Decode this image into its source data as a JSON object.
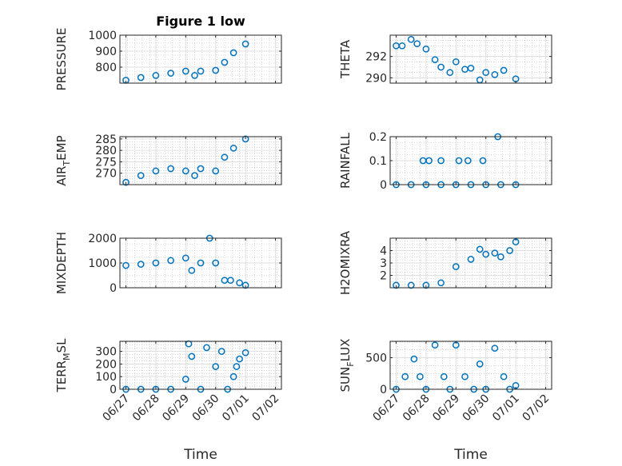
{
  "chart_data": [
    {
      "type": "scatter",
      "title": "Figure 1 low",
      "ylabel": "PRESSURE",
      "sub": "",
      "ylim": [
        700,
        1000
      ],
      "yticks": [
        800,
        900,
        1000
      ],
      "yticklabels": [
        "800",
        "900",
        "1000"
      ],
      "x": [
        0.0,
        0.5,
        1.0,
        1.5,
        2.0,
        2.3,
        2.5,
        3.0,
        3.3,
        3.6,
        4.0
      ],
      "y": [
        718,
        735,
        748,
        762,
        775,
        748,
        775,
        780,
        830,
        890,
        945
      ]
    },
    {
      "type": "scatter",
      "title": "",
      "ylabel": "THETA",
      "sub": "",
      "ylim": [
        289.5,
        294
      ],
      "yticks": [
        290,
        292
      ],
      "yticklabels": [
        "290",
        "292"
      ],
      "x": [
        0.0,
        0.2,
        0.5,
        0.7,
        1.0,
        1.3,
        1.5,
        1.8,
        2.0,
        2.3,
        2.5,
        2.8,
        3.0,
        3.3,
        3.6,
        4.0
      ],
      "y": [
        293.0,
        293.0,
        293.6,
        293.2,
        292.7,
        291.7,
        291.0,
        290.5,
        291.5,
        290.8,
        290.9,
        289.8,
        290.5,
        290.3,
        290.7,
        289.9
      ]
    },
    {
      "type": "scatter",
      "title": "",
      "ylabel": "AIR",
      "sub": "T",
      "ylabel_tail": "EMP",
      "ylim": [
        265,
        286
      ],
      "yticks": [
        270,
        275,
        280,
        285
      ],
      "yticklabels": [
        "270",
        "275",
        "280",
        "285"
      ],
      "x": [
        0.0,
        0.5,
        1.0,
        1.5,
        2.0,
        2.3,
        2.5,
        3.0,
        3.3,
        3.6,
        4.0
      ],
      "y": [
        266,
        269,
        271,
        272,
        271,
        269,
        272,
        271,
        277,
        281,
        285
      ]
    },
    {
      "type": "scatter",
      "title": "",
      "ylabel": "RAINFALL",
      "sub": "",
      "ylim": [
        0,
        0.2
      ],
      "yticks": [
        0,
        0.1,
        0.2
      ],
      "yticklabels": [
        "0",
        "0.1",
        "0.2"
      ],
      "x": [
        0.0,
        0.5,
        1.0,
        1.5,
        2.0,
        2.5,
        3.0,
        3.5,
        4.0,
        0.9,
        1.1,
        1.5,
        2.1,
        2.4,
        2.9,
        3.4
      ],
      "y": [
        0,
        0,
        0,
        0,
        0,
        0,
        0,
        0,
        0,
        0.1,
        0.1,
        0.1,
        0.1,
        0.1,
        0.1,
        0.2
      ]
    },
    {
      "type": "scatter",
      "title": "",
      "ylabel": "MIXDEPTH",
      "sub": "",
      "ylim": [
        0,
        2000
      ],
      "yticks": [
        0,
        1000,
        2000
      ],
      "yticklabels": [
        "0",
        "1000",
        "2000"
      ],
      "x": [
        0.0,
        0.5,
        1.0,
        1.5,
        2.0,
        2.2,
        2.5,
        2.8,
        3.0,
        3.3,
        3.5,
        3.8,
        4.0
      ],
      "y": [
        900,
        950,
        1000,
        1100,
        1200,
        700,
        1000,
        2000,
        1000,
        300,
        300,
        200,
        100
      ]
    },
    {
      "type": "scatter",
      "title": "",
      "ylabel": "H2OMIXRA",
      "sub": "",
      "ylim": [
        1,
        5
      ],
      "yticks": [
        2,
        3,
        4
      ],
      "yticklabels": [
        "2",
        "3",
        "4"
      ],
      "x": [
        0.0,
        0.5,
        1.0,
        1.5,
        2.0,
        2.5,
        2.8,
        3.0,
        3.3,
        3.5,
        3.8,
        4.0
      ],
      "y": [
        1.2,
        1.2,
        1.2,
        1.4,
        2.7,
        3.3,
        4.1,
        3.7,
        3.8,
        3.5,
        4.0,
        4.7
      ]
    },
    {
      "type": "scatter",
      "title": "",
      "ylabel": "TERR",
      "sub": "M",
      "ylabel_tail": "SL",
      "ylim": [
        0,
        380
      ],
      "yticks": [
        0,
        100,
        200,
        300
      ],
      "yticklabels": [
        "0",
        "100",
        "200",
        "300"
      ],
      "x": [
        0.0,
        0.5,
        1.0,
        1.5,
        2.0,
        2.1,
        2.2,
        2.5,
        2.7,
        3.0,
        3.2,
        3.4,
        3.6,
        3.7,
        3.8,
        4.0
      ],
      "y": [
        0,
        0,
        0,
        0,
        80,
        360,
        260,
        0,
        330,
        180,
        300,
        0,
        100,
        180,
        240,
        290
      ]
    },
    {
      "type": "scatter",
      "title": "",
      "ylabel": "SUN",
      "sub": "F",
      "ylabel_tail": "LUX",
      "ylim": [
        0,
        760
      ],
      "yticks": [
        0,
        500
      ],
      "yticklabels": [
        "0",
        "500"
      ],
      "x": [
        0.0,
        0.3,
        0.6,
        0.8,
        1.0,
        1.3,
        1.6,
        1.8,
        2.0,
        2.3,
        2.6,
        2.8,
        3.0,
        3.3,
        3.6,
        3.8,
        4.0
      ],
      "y": [
        0,
        200,
        480,
        200,
        0,
        700,
        200,
        0,
        700,
        200,
        0,
        400,
        0,
        650,
        200,
        0,
        60
      ]
    }
  ],
  "xaxis": {
    "xlim": [
      -0.2,
      5.2
    ],
    "xticks": [
      0,
      1,
      2,
      3,
      4,
      5
    ],
    "xticklabels": [
      "06/27",
      "06/28",
      "06/29",
      "06/30",
      "07/01",
      "07/02"
    ],
    "xlabel": "Time"
  },
  "colors": {
    "marker": "#0072BD",
    "axis": "#262626",
    "grid": "#bdbdbd"
  }
}
